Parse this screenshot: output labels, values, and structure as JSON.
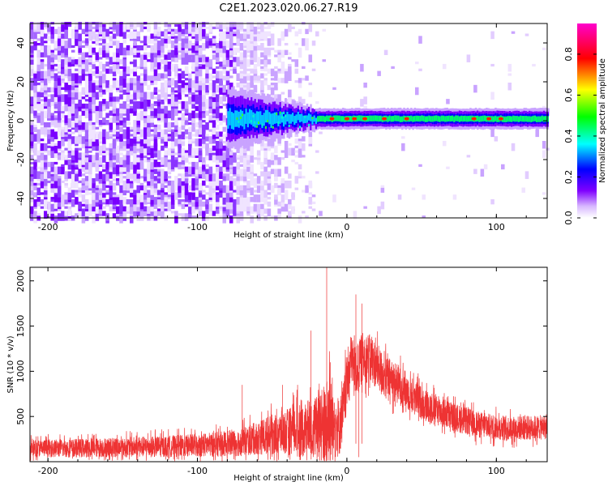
{
  "page": {
    "title": "C2E1.2023.020.06.27.R19"
  },
  "chart_data": [
    {
      "type": "heatmap",
      "title": "C2E1.2023.020.06.27.R19",
      "xlabel": "Height of straight line (km)",
      "ylabel": "Frequency (Hz)",
      "xlim": [
        -212,
        134
      ],
      "ylim": [
        -50,
        50
      ],
      "xticks": [
        -200,
        -100,
        0,
        100
      ],
      "yticks": [
        -40,
        -20,
        0,
        20,
        40
      ],
      "colorbar": {
        "label": "Normalized spectral amplitude",
        "range": [
          0,
          0.95
        ],
        "ticks": [
          0.0,
          0.2,
          0.4,
          0.6,
          0.8
        ],
        "colormap": [
          "#ffffff",
          "#d8b8ff",
          "#7f00ff",
          "#0000ff",
          "#00ffff",
          "#00ff00",
          "#ffff00",
          "#ff0000",
          "#ff00ff"
        ]
      },
      "features": {
        "broadband_noise_region_km": [
          -212,
          -75
        ],
        "noise_fade_end_km": -20,
        "signal_band_center_hz": 1,
        "signal_band_halfwidth_hz": 3,
        "strong_peaks_km": [
          -10,
          0,
          5,
          12,
          25,
          40,
          85,
          95,
          103
        ]
      }
    },
    {
      "type": "line",
      "xlabel": "Height of straight line (km)",
      "ylabel": "SNR (10 * v/v)",
      "xlim": [
        -212,
        134
      ],
      "ylim": [
        0,
        2150
      ],
      "xticks": [
        -200,
        -100,
        0,
        100
      ],
      "yticks": [
        500,
        1000,
        1500,
        2000
      ],
      "series": [
        {
          "color": "#ee3333",
          "envelope_x": [
            -212,
            -180,
            -150,
            -120,
            -100,
            -80,
            -70,
            -60,
            -50,
            -40,
            -30,
            -20,
            -15,
            -12,
            -8,
            -5,
            -2,
            0,
            3,
            6,
            8,
            10,
            14,
            18,
            25,
            35,
            50,
            70,
            90,
            110,
            134
          ],
          "envelope_mean": [
            150,
            150,
            160,
            170,
            180,
            200,
            220,
            260,
            300,
            330,
            350,
            380,
            400,
            450,
            420,
            380,
            600,
            900,
            1150,
            1000,
            1050,
            1150,
            1150,
            1100,
            950,
            850,
            650,
            500,
            400,
            370,
            380
          ],
          "envelope_spread": [
            120,
            130,
            140,
            150,
            160,
            180,
            200,
            230,
            280,
            320,
            380,
            450,
            600,
            650,
            500,
            400,
            400,
            400,
            350,
            350,
            350,
            350,
            350,
            330,
            300,
            280,
            230,
            200,
            180,
            170,
            170
          ],
          "spikes": [
            {
              "x": -13.5,
              "y": 2150
            },
            {
              "x": -11,
              "y": 1100
            },
            {
              "x": -24,
              "y": 1450
            },
            {
              "x": 6,
              "y": 1850
            },
            {
              "x": 10,
              "y": 1750
            },
            {
              "x": -70,
              "y": 850
            },
            {
              "x": -43,
              "y": 850
            },
            {
              "x": -33,
              "y": 850
            }
          ],
          "dip": {
            "x": 8,
            "y": 50
          }
        }
      ]
    }
  ]
}
